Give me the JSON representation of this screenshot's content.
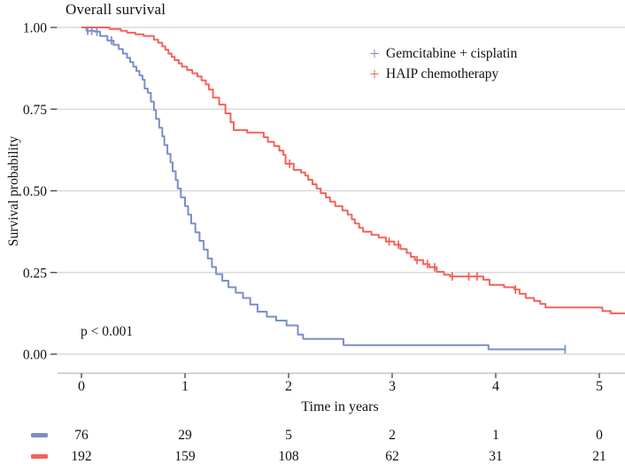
{
  "chart": {
    "title": "Overall survival",
    "x_label": "Time in years",
    "y_label": "Survival probability",
    "p_value_text": "p < 0.001",
    "colors": {
      "series_blue": "#7b8ec9",
      "series_red": "#f4625a",
      "gridline": "#d4d4d4",
      "axis_line": "#bdbdbd",
      "tick_mark": "#404040",
      "text": "#111111",
      "background": "#ffffff"
    }
  },
  "chart_data": {
    "type": "line",
    "subtype": "kaplan-meier-step",
    "title": "Overall survival",
    "xlabel": "Time in years",
    "ylabel": "Survival probability",
    "xlim": [
      0,
      5.25
    ],
    "ylim": [
      0,
      1
    ],
    "x_ticks": [
      0,
      1,
      2,
      3,
      4,
      5
    ],
    "y_ticks": [
      0,
      0.25,
      0.5,
      0.75,
      1
    ],
    "grid": "horizontal-only",
    "legend_position": "inside-top-right",
    "annotation": "p < 0.001",
    "series": [
      {
        "name": "Gemcitabine + cisplatin",
        "color": "#7b8ec9",
        "end_time": 4.67,
        "steps": [
          [
            0,
            1.0
          ],
          [
            0.05,
            0.99
          ],
          [
            0.13,
            0.987
          ],
          [
            0.18,
            0.974
          ],
          [
            0.25,
            0.96
          ],
          [
            0.31,
            0.947
          ],
          [
            0.36,
            0.934
          ],
          [
            0.4,
            0.92
          ],
          [
            0.44,
            0.907
          ],
          [
            0.47,
            0.894
          ],
          [
            0.5,
            0.88
          ],
          [
            0.53,
            0.867
          ],
          [
            0.56,
            0.853
          ],
          [
            0.59,
            0.84
          ],
          [
            0.61,
            0.813
          ],
          [
            0.64,
            0.8
          ],
          [
            0.67,
            0.773
          ],
          [
            0.7,
            0.747
          ],
          [
            0.72,
            0.72
          ],
          [
            0.75,
            0.693
          ],
          [
            0.78,
            0.667
          ],
          [
            0.8,
            0.64
          ],
          [
            0.83,
            0.613
          ],
          [
            0.86,
            0.587
          ],
          [
            0.88,
            0.56
          ],
          [
            0.91,
            0.533
          ],
          [
            0.93,
            0.507
          ],
          [
            0.96,
            0.48
          ],
          [
            1.0,
            0.453
          ],
          [
            1.03,
            0.427
          ],
          [
            1.06,
            0.4
          ],
          [
            1.1,
            0.373
          ],
          [
            1.14,
            0.347
          ],
          [
            1.18,
            0.32
          ],
          [
            1.22,
            0.293
          ],
          [
            1.26,
            0.267
          ],
          [
            1.3,
            0.245
          ],
          [
            1.36,
            0.225
          ],
          [
            1.42,
            0.205
          ],
          [
            1.49,
            0.188
          ],
          [
            1.56,
            0.172
          ],
          [
            1.63,
            0.152
          ],
          [
            1.7,
            0.13
          ],
          [
            1.79,
            0.115
          ],
          [
            1.88,
            0.103
          ],
          [
            1.98,
            0.088
          ],
          [
            2.09,
            0.06
          ],
          [
            2.14,
            0.047
          ],
          [
            2.53,
            0.028
          ],
          [
            3.93,
            0.015
          ]
        ],
        "censor_marks": [
          [
            0.06,
            0.99
          ],
          [
            0.1,
            0.99
          ],
          [
            0.15,
            0.987
          ],
          [
            0.29,
            0.96
          ],
          [
            4.67,
            0.015
          ]
        ]
      },
      {
        "name": "HAIP chemotherapy",
        "color": "#f4625a",
        "end_time": 5.25,
        "steps": [
          [
            0,
            1.0
          ],
          [
            0.27,
            0.995
          ],
          [
            0.38,
            0.99
          ],
          [
            0.44,
            0.984
          ],
          [
            0.52,
            0.979
          ],
          [
            0.6,
            0.974
          ],
          [
            0.7,
            0.963
          ],
          [
            0.74,
            0.953
          ],
          [
            0.78,
            0.942
          ],
          [
            0.81,
            0.932
          ],
          [
            0.84,
            0.92
          ],
          [
            0.87,
            0.91
          ],
          [
            0.9,
            0.9
          ],
          [
            0.94,
            0.89
          ],
          [
            0.97,
            0.88
          ],
          [
            1.02,
            0.87
          ],
          [
            1.07,
            0.86
          ],
          [
            1.12,
            0.85
          ],
          [
            1.16,
            0.838
          ],
          [
            1.2,
            0.826
          ],
          [
            1.23,
            0.81
          ],
          [
            1.27,
            0.785
          ],
          [
            1.33,
            0.764
          ],
          [
            1.39,
            0.737
          ],
          [
            1.44,
            0.71
          ],
          [
            1.47,
            0.686
          ],
          [
            1.6,
            0.678
          ],
          [
            1.76,
            0.664
          ],
          [
            1.8,
            0.65
          ],
          [
            1.86,
            0.637
          ],
          [
            1.91,
            0.623
          ],
          [
            1.95,
            0.61
          ],
          [
            1.97,
            0.583
          ],
          [
            2.05,
            0.564
          ],
          [
            2.12,
            0.556
          ],
          [
            2.16,
            0.547
          ],
          [
            2.19,
            0.534
          ],
          [
            2.23,
            0.52
          ],
          [
            2.27,
            0.507
          ],
          [
            2.31,
            0.493
          ],
          [
            2.36,
            0.48
          ],
          [
            2.4,
            0.467
          ],
          [
            2.45,
            0.453
          ],
          [
            2.52,
            0.44
          ],
          [
            2.57,
            0.427
          ],
          [
            2.61,
            0.413
          ],
          [
            2.64,
            0.4
          ],
          [
            2.68,
            0.387
          ],
          [
            2.72,
            0.375
          ],
          [
            2.8,
            0.365
          ],
          [
            2.87,
            0.357
          ],
          [
            2.94,
            0.345
          ],
          [
            3.02,
            0.335
          ],
          [
            3.08,
            0.322
          ],
          [
            3.14,
            0.31
          ],
          [
            3.18,
            0.298
          ],
          [
            3.22,
            0.288
          ],
          [
            3.3,
            0.276
          ],
          [
            3.36,
            0.266
          ],
          [
            3.43,
            0.252
          ],
          [
            3.5,
            0.243
          ],
          [
            3.56,
            0.238
          ],
          [
            3.88,
            0.228
          ],
          [
            3.94,
            0.212
          ],
          [
            4.08,
            0.205
          ],
          [
            4.18,
            0.198
          ],
          [
            4.23,
            0.185
          ],
          [
            4.29,
            0.172
          ],
          [
            4.37,
            0.163
          ],
          [
            4.43,
            0.154
          ],
          [
            4.48,
            0.143
          ],
          [
            5.03,
            0.132
          ],
          [
            5.11,
            0.125
          ]
        ],
        "censor_marks": [
          [
            2.01,
            0.583
          ],
          [
            2.97,
            0.345
          ],
          [
            3.06,
            0.335
          ],
          [
            3.24,
            0.288
          ],
          [
            3.34,
            0.276
          ],
          [
            3.41,
            0.266
          ],
          [
            3.58,
            0.238
          ],
          [
            3.74,
            0.238
          ],
          [
            3.82,
            0.238
          ],
          [
            4.19,
            0.198
          ]
        ]
      }
    ],
    "risk_table": {
      "times": [
        0,
        1,
        2,
        3,
        4,
        5
      ],
      "rows": [
        {
          "name": "Gemcitabine + cisplatin",
          "color": "#7b8ec9",
          "counts": [
            76,
            29,
            5,
            2,
            1,
            0
          ]
        },
        {
          "name": "HAIP chemotherapy",
          "color": "#f4625a",
          "counts": [
            192,
            159,
            108,
            62,
            31,
            21
          ]
        }
      ]
    }
  }
}
